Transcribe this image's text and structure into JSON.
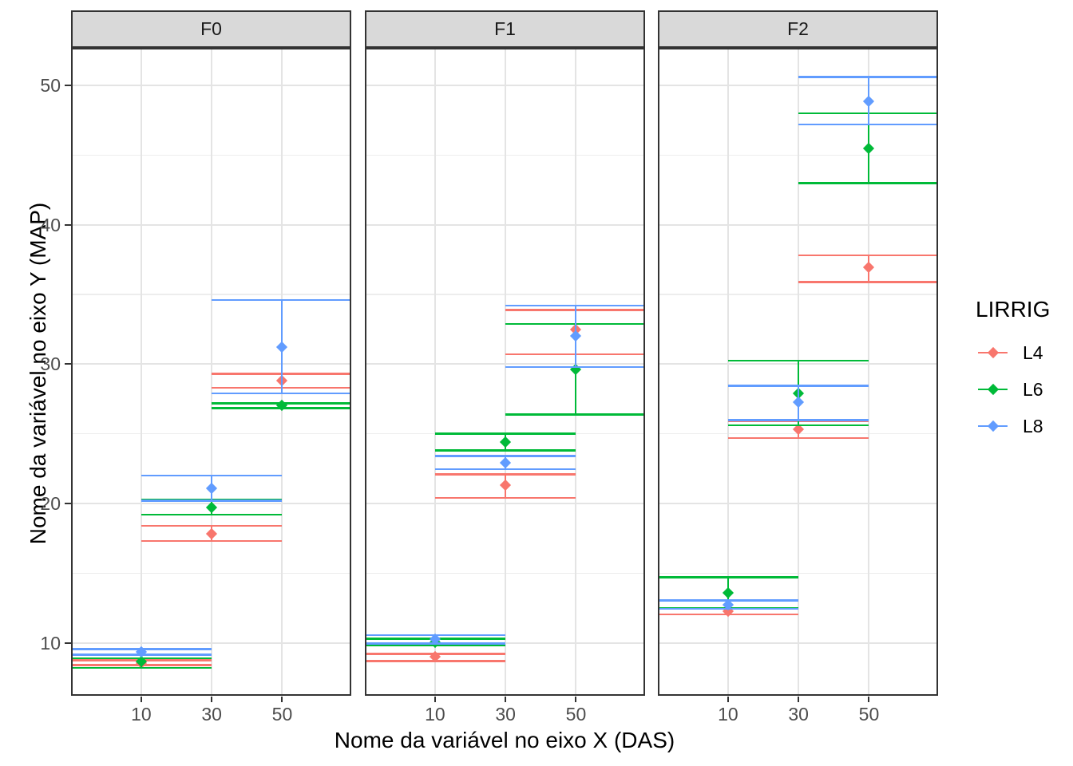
{
  "chart_data": {
    "type": "pointrange",
    "xlabel": "Nome da variável no eixo X (DAS)",
    "ylabel": "Nome da variável no eixo Y (MAP)",
    "x_ticks": [
      10,
      30,
      50
    ],
    "y_ticks": [
      10,
      20,
      30,
      40,
      50
    ],
    "y_minor_gridlines": [
      15,
      25,
      35,
      45
    ],
    "xlim": [
      -9.9,
      69.6
    ],
    "ylim": [
      6.2,
      52.7
    ],
    "errorbar_cap_width_x_units": 40,
    "grid": "on",
    "legend": {
      "title": "LIRRIG",
      "position": "right",
      "entries": [
        {
          "label": "L4",
          "color": "#F8766D"
        },
        {
          "label": "L6",
          "color": "#00BA38"
        },
        {
          "label": "L8",
          "color": "#619CFF"
        }
      ]
    },
    "colors": {
      "strip_fill": "#D9D9D9",
      "panel_border": "#333333",
      "grid_major": "#E4E4E4",
      "grid_minor": "#EDEDED",
      "tick_text": "#4D4D4D",
      "series_L4": "#F8766D",
      "series_L6": "#00BA38",
      "series_L8": "#619CFF"
    },
    "facets": [
      {
        "label": "F0",
        "series": [
          {
            "name": "L4",
            "color": "#F8766D",
            "points": [
              {
                "x": 10,
                "y": 8.55,
                "lo": 8.4,
                "hi": 8.75
              },
              {
                "x": 30,
                "y": 17.8,
                "lo": 17.3,
                "hi": 18.4
              },
              {
                "x": 50,
                "y": 28.8,
                "lo": 28.3,
                "hi": 29.3
              }
            ]
          },
          {
            "name": "L6",
            "color": "#00BA38",
            "points": [
              {
                "x": 10,
                "y": 8.65,
                "lo": 8.2,
                "hi": 8.9
              },
              {
                "x": 30,
                "y": 19.7,
                "lo": 19.2,
                "hi": 20.3
              },
              {
                "x": 50,
                "y": 27.05,
                "lo": 26.85,
                "hi": 27.2
              }
            ]
          },
          {
            "name": "L8",
            "color": "#619CFF",
            "points": [
              {
                "x": 10,
                "y": 9.35,
                "lo": 9.15,
                "hi": 9.55
              },
              {
                "x": 30,
                "y": 21.1,
                "lo": 20.2,
                "hi": 22.0
              },
              {
                "x": 50,
                "y": 31.2,
                "lo": 27.9,
                "hi": 34.6
              }
            ]
          }
        ]
      },
      {
        "label": "F1",
        "series": [
          {
            "name": "L4",
            "color": "#F8766D",
            "points": [
              {
                "x": 10,
                "y": 9.0,
                "lo": 8.7,
                "hi": 9.2
              },
              {
                "x": 30,
                "y": 21.3,
                "lo": 20.4,
                "hi": 22.1
              },
              {
                "x": 50,
                "y": 32.5,
                "lo": 30.7,
                "hi": 33.9
              }
            ]
          },
          {
            "name": "L6",
            "color": "#00BA38",
            "points": [
              {
                "x": 10,
                "y": 10.05,
                "lo": 9.85,
                "hi": 10.3
              },
              {
                "x": 30,
                "y": 24.4,
                "lo": 23.8,
                "hi": 25.0
              },
              {
                "x": 50,
                "y": 29.6,
                "lo": 26.4,
                "hi": 32.9
              }
            ]
          },
          {
            "name": "L8",
            "color": "#619CFF",
            "points": [
              {
                "x": 10,
                "y": 10.25,
                "lo": 9.95,
                "hi": 10.55
              },
              {
                "x": 30,
                "y": 22.9,
                "lo": 22.45,
                "hi": 23.4
              },
              {
                "x": 50,
                "y": 32.0,
                "lo": 29.8,
                "hi": 34.2
              }
            ]
          }
        ]
      },
      {
        "label": "F2",
        "series": [
          {
            "name": "L4",
            "color": "#F8766D",
            "points": [
              {
                "x": 10,
                "y": 12.25,
                "lo": 12.05,
                "hi": 12.5
              },
              {
                "x": 30,
                "y": 25.3,
                "lo": 24.7,
                "hi": 25.9
              },
              {
                "x": 50,
                "y": 36.95,
                "lo": 35.9,
                "hi": 37.8
              }
            ]
          },
          {
            "name": "L6",
            "color": "#00BA38",
            "points": [
              {
                "x": 10,
                "y": 13.6,
                "lo": 12.5,
                "hi": 14.7
              },
              {
                "x": 30,
                "y": 27.9,
                "lo": 25.6,
                "hi": 30.25
              },
              {
                "x": 50,
                "y": 45.5,
                "lo": 43.0,
                "hi": 48.0
              }
            ]
          },
          {
            "name": "L8",
            "color": "#619CFF",
            "points": [
              {
                "x": 10,
                "y": 12.7,
                "lo": 12.45,
                "hi": 13.05
              },
              {
                "x": 30,
                "y": 27.3,
                "lo": 26.0,
                "hi": 28.45
              },
              {
                "x": 50,
                "y": 48.85,
                "lo": 47.2,
                "hi": 50.6
              }
            ]
          }
        ]
      }
    ]
  }
}
